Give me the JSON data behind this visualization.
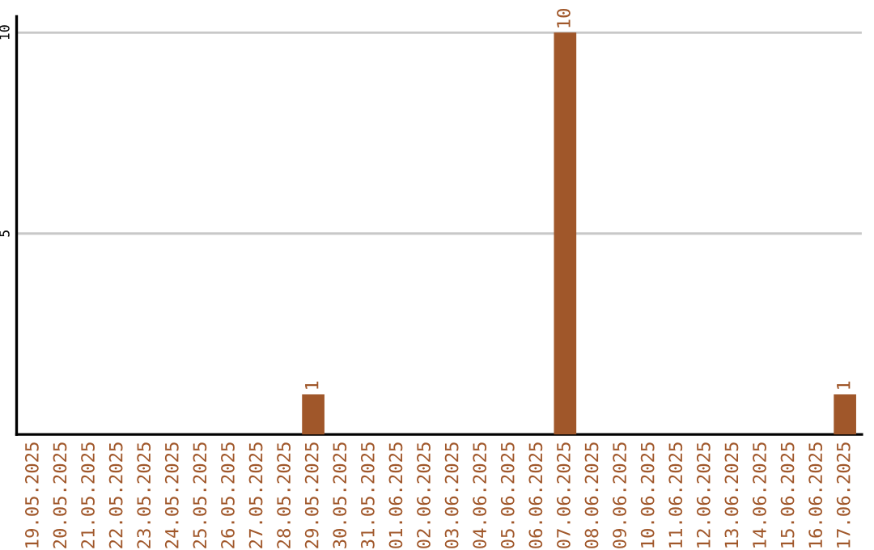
{
  "chart_data": {
    "type": "bar",
    "categories": [
      "19.05.2025",
      "20.05.2025",
      "21.05.2025",
      "22.05.2025",
      "23.05.2025",
      "24.05.2025",
      "25.05.2025",
      "26.05.2025",
      "27.05.2025",
      "28.05.2025",
      "29.05.2025",
      "30.05.2025",
      "31.05.2025",
      "01.06.2025",
      "02.06.2025",
      "03.06.2025",
      "04.06.2025",
      "05.06.2025",
      "06.06.2025",
      "07.06.2025",
      "08.06.2025",
      "09.06.2025",
      "10.06.2025",
      "11.06.2025",
      "12.06.2025",
      "13.06.2025",
      "14.06.2025",
      "15.06.2025",
      "16.06.2025",
      "17.06.2025"
    ],
    "values": [
      0,
      0,
      0,
      0,
      0,
      0,
      0,
      0,
      0,
      0,
      1,
      0,
      0,
      0,
      0,
      0,
      0,
      0,
      0,
      10,
      0,
      0,
      0,
      0,
      0,
      0,
      0,
      0,
      0,
      1
    ],
    "value_labels": [
      null,
      null,
      null,
      null,
      null,
      null,
      null,
      null,
      null,
      null,
      "1",
      null,
      null,
      null,
      null,
      null,
      null,
      null,
      null,
      "10",
      null,
      null,
      null,
      null,
      null,
      null,
      null,
      null,
      null,
      "1"
    ],
    "color": "#a0572a",
    "ylim": [
      0,
      10.4
    ],
    "yticks": [
      5,
      10
    ],
    "grid": "y",
    "legend": false
  }
}
